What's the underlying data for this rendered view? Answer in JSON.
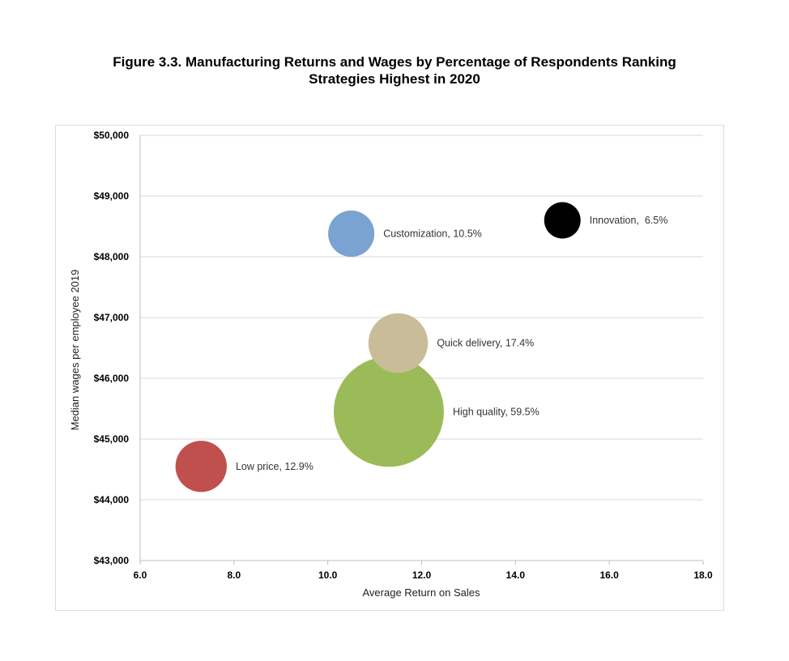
{
  "chart_data": {
    "type": "scatter",
    "title_line1": "Figure 3.3. Manufacturing Returns and Wages by Percentage of Respondents Ranking",
    "title_line2": "Strategies Highest in 2020",
    "xlabel": "Average Return on Sales",
    "ylabel": "Median wages per employee 2019",
    "xlim": [
      6.0,
      18.0
    ],
    "ylim": [
      43000,
      50000
    ],
    "x_ticks": [
      "6.0",
      "8.0",
      "10.0",
      "12.0",
      "14.0",
      "16.0",
      "18.0"
    ],
    "y_ticks": [
      "$43,000",
      "$44,000",
      "$45,000",
      "$46,000",
      "$47,000",
      "$48,000",
      "$49,000",
      "$50,000"
    ],
    "grid": true,
    "legend": "none",
    "bubbles": [
      {
        "label": "Customization, 10.5%",
        "x": 10.5,
        "y": 48380,
        "size": 10.5,
        "color": "#7aa3d1"
      },
      {
        "label": "Innovation,  6.5%",
        "x": 15.0,
        "y": 48600,
        "size": 6.5,
        "color": "#000000"
      },
      {
        "label": "Quick delivery, 17.4%",
        "x": 11.5,
        "y": 46580,
        "size": 17.4,
        "color": "#c9bd99"
      },
      {
        "label": "High quality, 59.5%",
        "x": 11.3,
        "y": 45450,
        "size": 59.5,
        "color": "#9bbb59"
      },
      {
        "label": "Low price, 12.9%",
        "x": 7.3,
        "y": 44550,
        "size": 12.9,
        "color": "#c0504d"
      }
    ]
  }
}
